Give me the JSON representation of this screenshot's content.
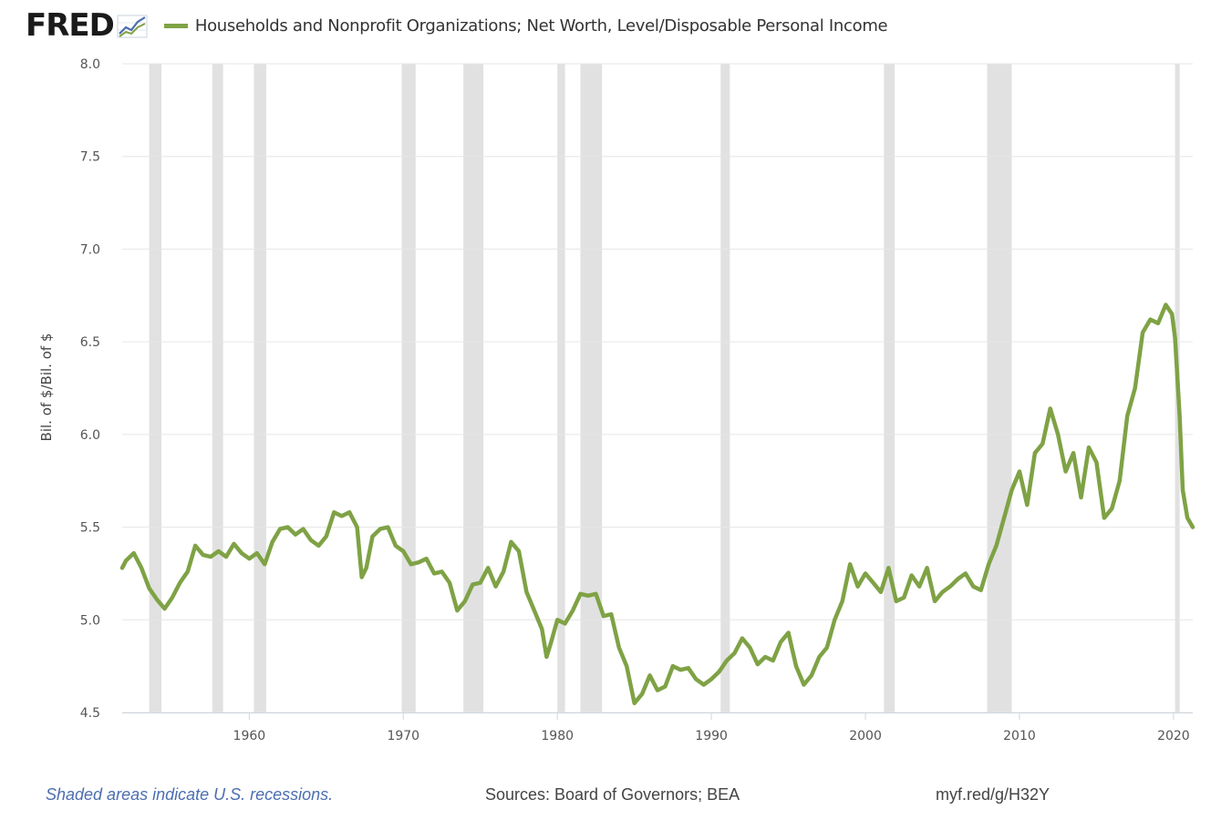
{
  "header": {
    "logo_text": "FRED",
    "logo_icon": "line-chart-icon"
  },
  "footer": {
    "recession_note": "Shaded areas indicate U.S. recessions.",
    "sources": "Sources: Board of Governors; BEA",
    "short_link": "myf.red/g/H32Y"
  },
  "colors": {
    "series": "#7fa245",
    "recession_band": "#e1e1e1",
    "grid": "#e6e6e6",
    "footer_note": "#4b6eaf"
  },
  "chart_data": {
    "type": "line",
    "title": "",
    "xlabel": "",
    "ylabel": "Bil. of $/Bil. of $",
    "xlim": [
      1951.75,
      2021.25
    ],
    "ylim": [
      4.5,
      8.0
    ],
    "x_ticks": [
      1960,
      1970,
      1980,
      1990,
      2000,
      2010,
      2020
    ],
    "y_ticks": [
      "4.5",
      "5.0",
      "5.5",
      "6.0",
      "6.5",
      "7.0",
      "7.5",
      "8.0"
    ],
    "grid": "horizontal",
    "legend": "top-left",
    "recessions": [
      [
        1953.5,
        1954.3
      ],
      [
        1957.6,
        1958.3
      ],
      [
        1960.3,
        1961.1
      ],
      [
        1969.9,
        1970.8
      ],
      [
        1973.9,
        1975.2
      ],
      [
        1980.0,
        1980.5
      ],
      [
        1981.5,
        1982.9
      ],
      [
        1990.6,
        1991.2
      ],
      [
        2001.2,
        2001.9
      ],
      [
        2007.9,
        2009.5
      ],
      [
        2020.1,
        2020.4
      ]
    ],
    "series": [
      {
        "name": "Households and Nonprofit Organizations; Net Worth, Level/Disposable Personal Income",
        "points": [
          [
            1951.75,
            5.28
          ],
          [
            1952.0,
            5.32
          ],
          [
            1952.5,
            5.36
          ],
          [
            1953.0,
            5.28
          ],
          [
            1953.5,
            5.17
          ],
          [
            1954.0,
            5.11
          ],
          [
            1954.5,
            5.06
          ],
          [
            1955.0,
            5.12
          ],
          [
            1955.5,
            5.2
          ],
          [
            1956.0,
            5.26
          ],
          [
            1956.5,
            5.4
          ],
          [
            1957.0,
            5.35
          ],
          [
            1957.5,
            5.34
          ],
          [
            1958.0,
            5.37
          ],
          [
            1958.5,
            5.34
          ],
          [
            1959.0,
            5.41
          ],
          [
            1959.5,
            5.36
          ],
          [
            1960.0,
            5.33
          ],
          [
            1960.5,
            5.36
          ],
          [
            1961.0,
            5.3
          ],
          [
            1961.5,
            5.42
          ],
          [
            1962.0,
            5.49
          ],
          [
            1962.5,
            5.5
          ],
          [
            1963.0,
            5.46
          ],
          [
            1963.5,
            5.49
          ],
          [
            1964.0,
            5.43
          ],
          [
            1964.5,
            5.4
          ],
          [
            1965.0,
            5.45
          ],
          [
            1965.5,
            5.58
          ],
          [
            1966.0,
            5.56
          ],
          [
            1966.5,
            5.58
          ],
          [
            1967.0,
            5.5
          ],
          [
            1967.3,
            5.23
          ],
          [
            1967.6,
            5.28
          ],
          [
            1968.0,
            5.45
          ],
          [
            1968.5,
            5.49
          ],
          [
            1969.0,
            5.5
          ],
          [
            1969.5,
            5.4
          ],
          [
            1970.0,
            5.37
          ],
          [
            1970.5,
            5.3
          ],
          [
            1971.0,
            5.31
          ],
          [
            1971.5,
            5.33
          ],
          [
            1972.0,
            5.25
          ],
          [
            1972.5,
            5.26
          ],
          [
            1973.0,
            5.2
          ],
          [
            1973.5,
            5.05
          ],
          [
            1974.0,
            5.1
          ],
          [
            1974.5,
            5.19
          ],
          [
            1975.0,
            5.2
          ],
          [
            1975.5,
            5.28
          ],
          [
            1976.0,
            5.18
          ],
          [
            1976.5,
            5.26
          ],
          [
            1977.0,
            5.42
          ],
          [
            1977.5,
            5.37
          ],
          [
            1978.0,
            5.15
          ],
          [
            1978.5,
            5.05
          ],
          [
            1979.0,
            4.95
          ],
          [
            1979.3,
            4.8
          ],
          [
            1979.6,
            4.88
          ],
          [
            1980.0,
            5.0
          ],
          [
            1980.5,
            4.98
          ],
          [
            1981.0,
            5.05
          ],
          [
            1981.5,
            5.14
          ],
          [
            1982.0,
            5.13
          ],
          [
            1982.5,
            5.14
          ],
          [
            1983.0,
            5.02
          ],
          [
            1983.5,
            5.03
          ],
          [
            1984.0,
            4.85
          ],
          [
            1984.5,
            4.75
          ],
          [
            1985.0,
            4.55
          ],
          [
            1985.5,
            4.6
          ],
          [
            1986.0,
            4.7
          ],
          [
            1986.5,
            4.62
          ],
          [
            1987.0,
            4.64
          ],
          [
            1987.5,
            4.75
          ],
          [
            1988.0,
            4.73
          ],
          [
            1988.5,
            4.74
          ],
          [
            1989.0,
            4.68
          ],
          [
            1989.5,
            4.65
          ],
          [
            1990.0,
            4.68
          ],
          [
            1990.5,
            4.72
          ],
          [
            1991.0,
            4.78
          ],
          [
            1991.5,
            4.82
          ],
          [
            1992.0,
            4.9
          ],
          [
            1992.5,
            4.85
          ],
          [
            1993.0,
            4.76
          ],
          [
            1993.5,
            4.8
          ],
          [
            1994.0,
            4.78
          ],
          [
            1994.5,
            4.88
          ],
          [
            1995.0,
            4.93
          ],
          [
            1995.5,
            4.75
          ],
          [
            1996.0,
            4.65
          ],
          [
            1996.5,
            4.7
          ],
          [
            1997.0,
            4.8
          ],
          [
            1997.5,
            4.85
          ],
          [
            1998.0,
            5.0
          ],
          [
            1998.5,
            5.1
          ],
          [
            1999.0,
            5.3
          ],
          [
            1999.5,
            5.18
          ],
          [
            2000.0,
            5.25
          ],
          [
            2000.5,
            5.2
          ],
          [
            2001.0,
            5.15
          ],
          [
            2001.5,
            5.28
          ],
          [
            2002.0,
            5.1
          ],
          [
            2002.5,
            5.12
          ],
          [
            2003.0,
            5.24
          ],
          [
            2003.5,
            5.18
          ],
          [
            2004.0,
            5.28
          ],
          [
            2004.5,
            5.1
          ],
          [
            2005.0,
            5.15
          ],
          [
            2005.5,
            5.18
          ],
          [
            2006.0,
            5.22
          ],
          [
            2006.5,
            5.25
          ],
          [
            2007.0,
            5.18
          ],
          [
            2007.5,
            5.16
          ],
          [
            2008.0,
            5.3
          ],
          [
            2008.5,
            5.4
          ],
          [
            2009.0,
            5.55
          ],
          [
            2009.5,
            5.7
          ],
          [
            2010.0,
            5.8
          ],
          [
            2010.5,
            5.62
          ],
          [
            2011.0,
            5.9
          ],
          [
            2011.5,
            5.95
          ],
          [
            2012.0,
            6.14
          ],
          [
            2012.5,
            6.0
          ],
          [
            2013.0,
            5.8
          ],
          [
            2013.5,
            5.9
          ],
          [
            2014.0,
            5.66
          ],
          [
            2014.5,
            5.93
          ],
          [
            2015.0,
            5.85
          ],
          [
            2015.5,
            5.55
          ],
          [
            2016.0,
            5.6
          ],
          [
            2016.5,
            5.75
          ],
          [
            2017.0,
            6.1
          ],
          [
            2017.5,
            6.25
          ],
          [
            2018.0,
            6.55
          ],
          [
            2018.5,
            6.62
          ],
          [
            2019.0,
            6.6
          ],
          [
            2019.5,
            6.7
          ],
          [
            2019.9,
            6.65
          ],
          [
            2020.1,
            6.52
          ],
          [
            2020.4,
            6.1
          ],
          [
            2020.6,
            5.7
          ],
          [
            2020.9,
            5.55
          ],
          [
            2021.25,
            5.5
          ]
        ]
      }
    ]
  }
}
